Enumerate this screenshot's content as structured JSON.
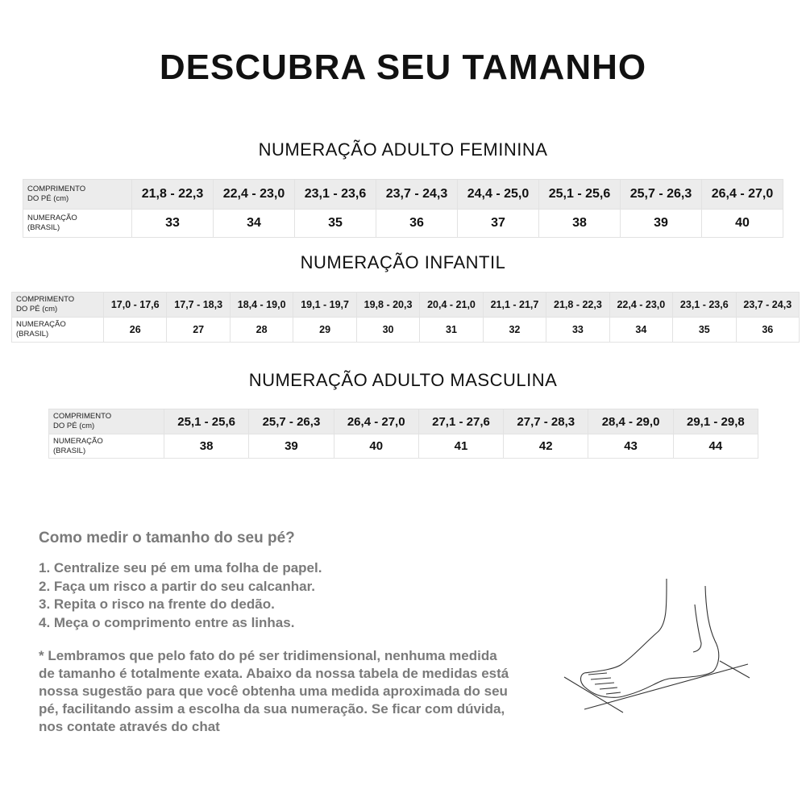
{
  "title": "DESCUBRA SEU TAMANHO",
  "row_labels": {
    "length": [
      "COMPRIMENTO",
      "DO PÉ (cm)"
    ],
    "size": [
      "NUMERAÇÃO",
      "(BRASIL)"
    ]
  },
  "tables": [
    {
      "heading": "NUMERAÇÃO ADULTO FEMININA",
      "lengths": [
        "21,8 - 22,3",
        "22,4 - 23,0",
        "23,1 - 23,6",
        "23,7 - 24,3",
        "24,4 - 25,0",
        "25,1 - 25,6",
        "25,7 - 26,3",
        "26,4 - 27,0"
      ],
      "sizes": [
        "33",
        "34",
        "35",
        "36",
        "37",
        "38",
        "39",
        "40"
      ]
    },
    {
      "heading": "NUMERAÇÃO INFANTIL",
      "lengths": [
        "17,0 - 17,6",
        "17,7 - 18,3",
        "18,4 - 19,0",
        "19,1 - 19,7",
        "19,8 - 20,3",
        "20,4 - 21,0",
        "21,1 - 21,7",
        "21,8 - 22,3",
        "22,4 - 23,0",
        "23,1 - 23,6",
        "23,7 - 24,3"
      ],
      "sizes": [
        "26",
        "27",
        "28",
        "29",
        "30",
        "31",
        "32",
        "33",
        "34",
        "35",
        "36"
      ]
    },
    {
      "heading": "NUMERAÇÃO ADULTO MASCULINA",
      "lengths": [
        "25,1 - 25,6",
        "25,7 - 26,3",
        "26,4 - 27,0",
        "27,1 - 27,6",
        "27,7 - 28,3",
        "28,4 - 29,0",
        "29,1 - 29,8"
      ],
      "sizes": [
        "38",
        "39",
        "40",
        "41",
        "42",
        "43",
        "44"
      ]
    }
  ],
  "howto": {
    "heading": "Como medir o tamanho do seu pé?",
    "steps": [
      "1. Centralize seu pé em uma folha de papel.",
      "2. Faça um risco a partir do seu calcanhar.",
      "3. Repita o risco na frente do dedão.",
      "4. Meça o comprimento entre as linhas."
    ],
    "note": "* Lembramos que pelo fato do pé ser tridimensional, nenhuma medida de tamanho é totalmente exata. Abaixo da nossa tabela de medidas está nossa sugestão para que você obtenha uma medida aproximada do seu pé, facilitando assim a escolha da sua numeração. Se ficar com dúvida, nos contate através do chat"
  }
}
